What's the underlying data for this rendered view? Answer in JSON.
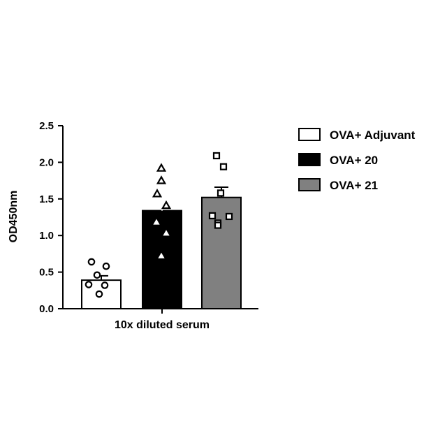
{
  "chart_data": {
    "type": "bar",
    "xlabel": "10x diluted serum",
    "ylabel": "OD450nm",
    "ylim": [
      0,
      2.5
    ],
    "yticks": [
      "0.0",
      "0.5",
      "1.0",
      "1.5",
      "2.0",
      "2.5"
    ],
    "ytick_values": [
      0,
      0.5,
      1.0,
      1.5,
      2.0,
      2.5
    ],
    "legend_position": "right",
    "series": [
      {
        "name": "OVA+ Adjuvant",
        "value": 0.39,
        "sem": 0.06,
        "fill": "#ffffff",
        "marker": "circle",
        "points": [
          0.64,
          0.58,
          0.46,
          0.33,
          0.32,
          0.2
        ]
      },
      {
        "name": "OVA+ 20",
        "value": 1.34,
        "sem": 0.14,
        "fill": "#000000",
        "marker": "triangle",
        "points": [
          1.92,
          1.75,
          1.57,
          1.41,
          1.18,
          1.03,
          0.72
        ]
      },
      {
        "name": "OVA+ 21",
        "value": 1.52,
        "sem": 0.14,
        "fill": "#808080",
        "marker": "square",
        "points": [
          2.09,
          1.94,
          1.58,
          1.27,
          1.26,
          1.17,
          1.14
        ]
      }
    ]
  }
}
